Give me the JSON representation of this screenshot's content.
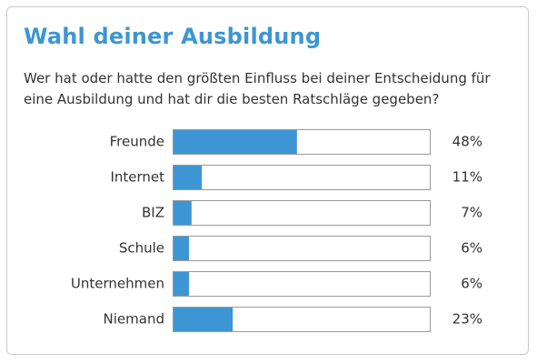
{
  "poll": {
    "title": "Wahl deiner Ausbildung",
    "question": "Wer hat oder hatte den größten Einfluss bei deiner Entscheidung für eine Ausbildung und hat dir die besten Ratschläge gegeben?"
  },
  "colors": {
    "title": "#3d96d3",
    "bar_fill": "#3d96d3",
    "bar_track_border": "#9a9a9a",
    "text": "#333333",
    "card_border": "#c9c9c9"
  },
  "chart_data": {
    "type": "bar",
    "orientation": "horizontal",
    "categories": [
      "Freunde",
      "Internet",
      "BIZ",
      "Schule",
      "Unternehmen",
      "Niemand"
    ],
    "values": [
      48,
      11,
      7,
      6,
      6,
      23
    ],
    "value_labels": [
      "48%",
      "11%",
      "7%",
      "6%",
      "6%",
      "23%"
    ],
    "xlim": [
      0,
      100
    ],
    "title": "Wahl deiner Ausbildung",
    "xlabel": "",
    "ylabel": "",
    "grid": false
  }
}
